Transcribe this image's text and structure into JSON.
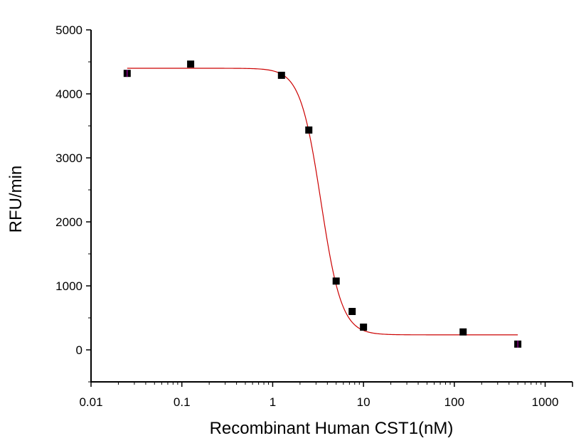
{
  "chart_data": {
    "type": "scatter",
    "title": "",
    "xlabel": "Recombinant Human CST1(nM)",
    "ylabel": "RFU/min",
    "x_scale": "log",
    "xlim": [
      0.01,
      2000
    ],
    "ylim": [
      -500,
      5000
    ],
    "x_ticks": [
      "0.01",
      "0.1",
      "1",
      "10",
      "100",
      "1000"
    ],
    "y_ticks": [
      "0",
      "1000",
      "2000",
      "3000",
      "4000",
      "5000"
    ],
    "grid": false,
    "legend": "none",
    "points": {
      "x": [
        0.025,
        0.125,
        1.25,
        2.5,
        5,
        7.5,
        10,
        125,
        500
      ],
      "y": [
        4320,
        4465,
        4290,
        3435,
        1075,
        600,
        355,
        280,
        90
      ]
    },
    "fit_curve": {
      "model": "4-parameter logistic",
      "top": 4400,
      "bottom": 235,
      "ec50": 3.4,
      "hill": 3.8,
      "x_range": [
        0.025,
        500
      ]
    },
    "colors": {
      "points": "#000000",
      "curve": "#cc0000",
      "error_bars": "#cc00cc"
    }
  }
}
